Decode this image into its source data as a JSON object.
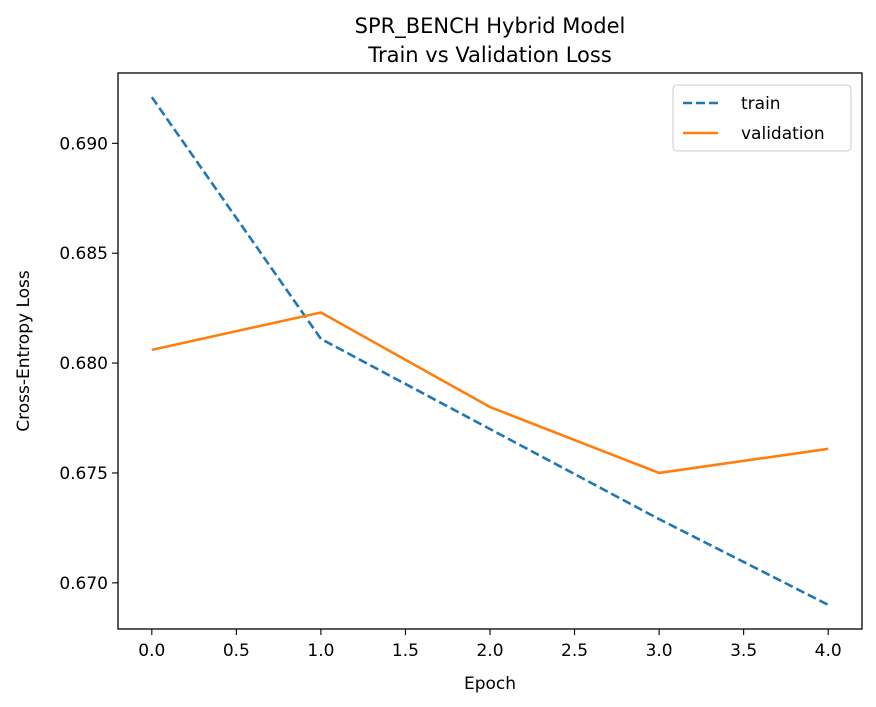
{
  "chart_data": {
    "type": "line",
    "title": "SPR_BENCH Hybrid Model",
    "subtitle": "Train vs Validation Loss",
    "xlabel": "Epoch",
    "ylabel": "Cross-Entropy Loss",
    "xlim": [
      -0.2,
      4.2
    ],
    "ylim": [
      0.6679,
      0.6932
    ],
    "xticks": [
      0.0,
      0.5,
      1.0,
      1.5,
      2.0,
      2.5,
      3.0,
      3.5,
      4.0
    ],
    "xtick_labels": [
      "0.0",
      "0.5",
      "1.0",
      "1.5",
      "2.0",
      "2.5",
      "3.0",
      "3.5",
      "4.0"
    ],
    "yticks": [
      0.67,
      0.675,
      0.68,
      0.685,
      0.69
    ],
    "ytick_labels": [
      "0.670",
      "0.675",
      "0.680",
      "0.685",
      "0.690"
    ],
    "grid": false,
    "legend_position": "top-right",
    "x": [
      0,
      1,
      2,
      3,
      4
    ],
    "series": [
      {
        "name": "train",
        "values": [
          0.6921,
          0.6811,
          0.677,
          0.6729,
          0.669
        ],
        "color": "#1f77b4",
        "style": "dashed"
      },
      {
        "name": "validation",
        "values": [
          0.6806,
          0.6823,
          0.678,
          0.675,
          0.6761
        ],
        "color": "#ff7f0e",
        "style": "solid"
      }
    ]
  }
}
